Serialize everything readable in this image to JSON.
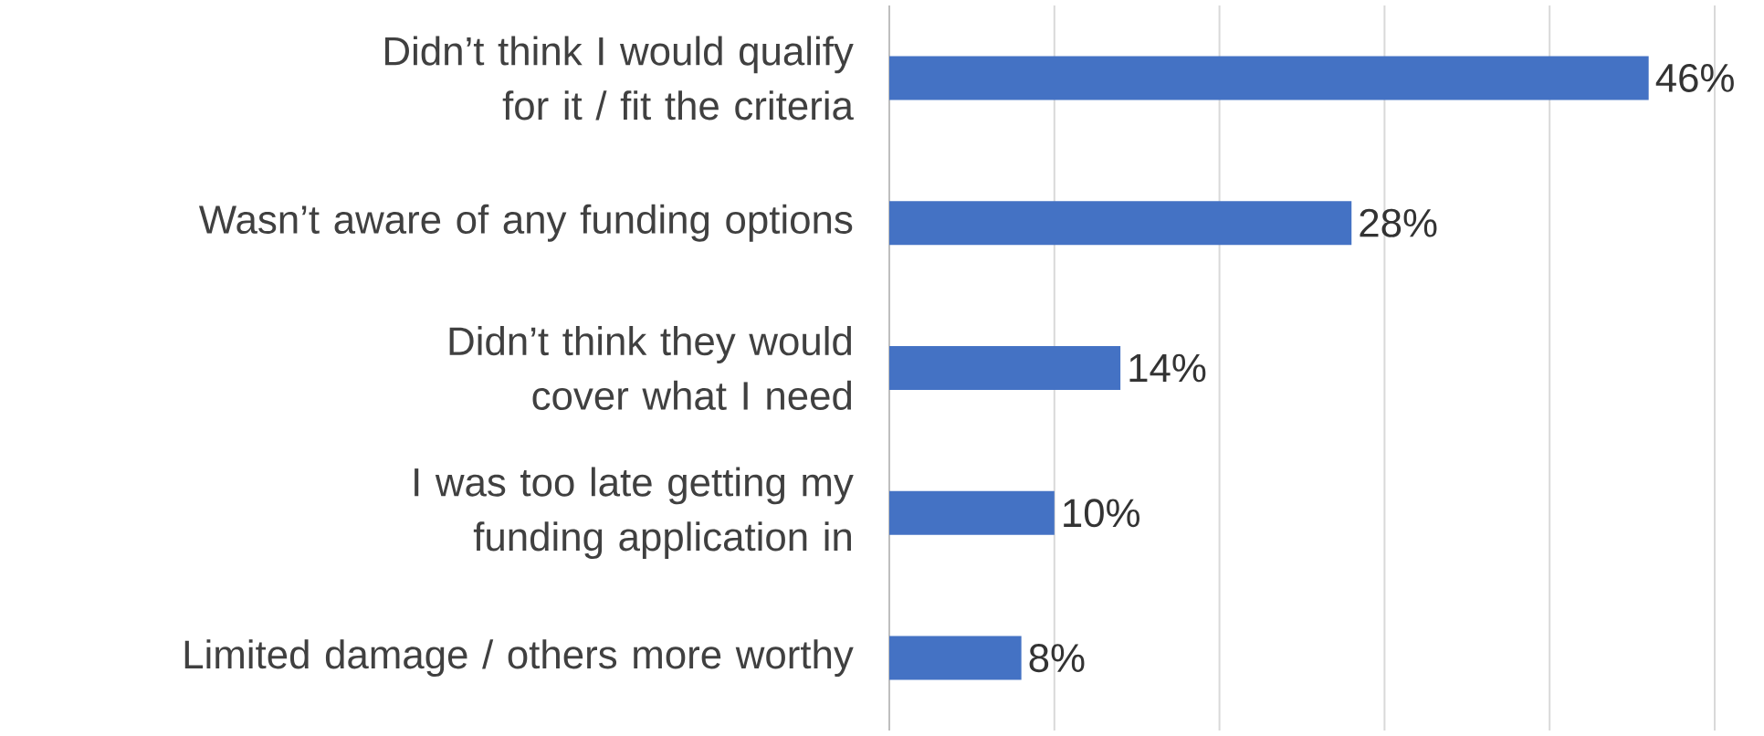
{
  "chart_data": {
    "type": "bar",
    "orientation": "horizontal",
    "categories": [
      "Didn’t think I would qualify for it / fit the criteria",
      "Wasn’t aware of any funding options",
      "Didn’t think they would cover what I need",
      "I was too late getting my funding application in",
      "Limited damage / others more worthy"
    ],
    "values": [
      46,
      28,
      14,
      10,
      8
    ],
    "value_labels": [
      "46%",
      "28%",
      "14%",
      "10%",
      "8%"
    ],
    "color": "#4472c4",
    "xlim": [
      0,
      50
    ],
    "xticks": [
      {
        "value": 0,
        "label": null
      },
      {
        "value": 10,
        "label": null
      },
      {
        "value": 20,
        "label": null
      },
      {
        "value": 30,
        "label": null
      },
      {
        "value": 40,
        "label": null
      },
      {
        "value": 50,
        "label": null
      }
    ],
    "grid": "x",
    "tick_labels": "y"
  }
}
